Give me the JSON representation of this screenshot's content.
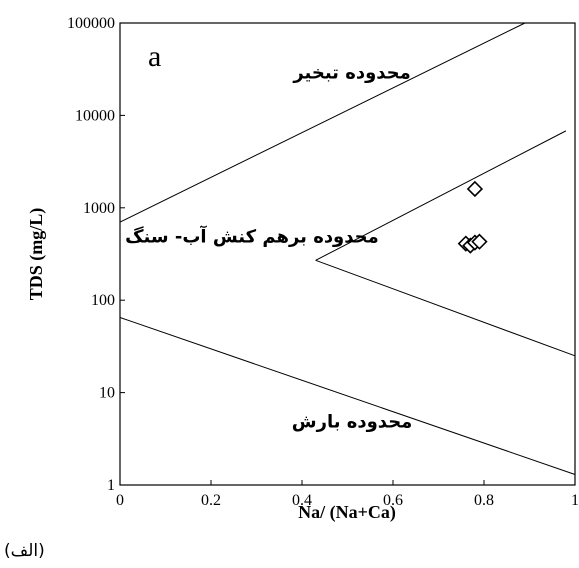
{
  "chart_data": {
    "type": "scatter",
    "title": "",
    "panel_label": "a",
    "caption": "(الف)",
    "xlabel": "Na/ (Na+Ca)",
    "ylabel": "TDS (mg/L)",
    "xlim": [
      0,
      1
    ],
    "ylim": [
      1,
      100000
    ],
    "yscale": "log",
    "grid": false,
    "x_ticks": [
      "0",
      "0.2",
      "0.4",
      "0.6",
      "0.8",
      "1"
    ],
    "y_ticks": [
      "1",
      "10",
      "100",
      "1000",
      "10000",
      "100000"
    ],
    "marker": "diamond-open",
    "points": [
      {
        "x": 0.78,
        "y": 1600
      },
      {
        "x": 0.76,
        "y": 410
      },
      {
        "x": 0.77,
        "y": 390
      },
      {
        "x": 0.78,
        "y": 420
      },
      {
        "x": 0.79,
        "y": 430
      }
    ],
    "boundaries": [
      {
        "x1": 0,
        "y1": 700,
        "x2": 0.89,
        "y2": 100000
      },
      {
        "x1": 0.43,
        "y1": 270,
        "x2": 0.98,
        "y2": 6800
      },
      {
        "x1": 0.43,
        "y1": 270,
        "x2": 1,
        "y2": 25
      },
      {
        "x1": 0,
        "y1": 65,
        "x2": 1,
        "y2": 1.3
      }
    ],
    "regions": [
      {
        "label": "محدوده تبخیر",
        "x": 0.51,
        "y": 25000
      },
      {
        "label": "محدوده برهم کنش آب- سنگ",
        "x": 0.29,
        "y": 420
      },
      {
        "label": "محدوده بارش",
        "x": 0.51,
        "y": 4.2
      }
    ]
  }
}
